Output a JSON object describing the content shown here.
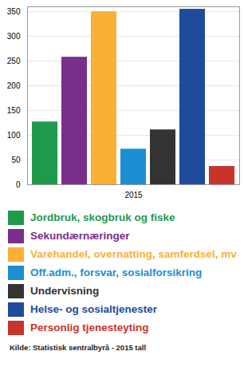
{
  "chart_data": {
    "type": "bar",
    "categories": [
      "2015"
    ],
    "series": [
      {
        "name": "Jordbruk, skogbruk og fiske",
        "color": "#1e9a4b",
        "values": [
          127
        ]
      },
      {
        "name": "Sekundærnæringer",
        "color": "#7a2e8c",
        "values": [
          258
        ]
      },
      {
        "name": "Varehandel, overnatting, samferdsel, mv",
        "color": "#fbb034",
        "values": [
          350
        ]
      },
      {
        "name": "Off.adm., forsvar, sosialforsikring",
        "color": "#1b8fd2",
        "values": [
          72
        ]
      },
      {
        "name": "Undervisning",
        "color": "#333333",
        "values": [
          111
        ]
      },
      {
        "name": "Helse- og sosialtjenester",
        "color": "#1f4b9c",
        "values": [
          355
        ]
      },
      {
        "name": "Personlig tjenesteyting",
        "color": "#c8342b",
        "values": [
          37
        ]
      }
    ],
    "ylim": [
      0,
      360
    ],
    "yticks": [
      0,
      50,
      100,
      150,
      200,
      250,
      300,
      350
    ],
    "grid": true,
    "source": "Kilde: Statistisk sentralbyrå - 2015 tall"
  }
}
